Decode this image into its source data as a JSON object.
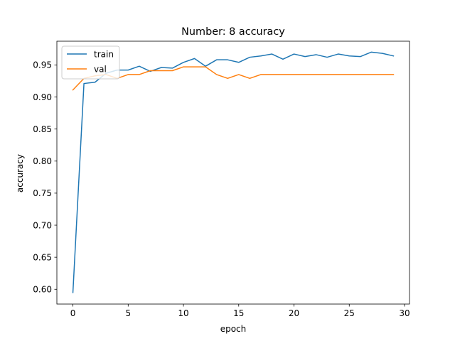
{
  "chart_data": {
    "type": "line",
    "title": "Number: 8 accuracy",
    "xlabel": "epoch",
    "ylabel": "accuracy",
    "xlim": [
      -1.45,
      30.45
    ],
    "ylim": [
      0.577,
      0.987
    ],
    "xticks": [
      0,
      5,
      10,
      15,
      20,
      25,
      30
    ],
    "yticks": [
      0.6,
      0.65,
      0.7,
      0.75,
      0.8,
      0.85,
      0.9,
      0.95
    ],
    "ytick_labels": [
      "0.60",
      "0.65",
      "0.70",
      "0.75",
      "0.80",
      "0.85",
      "0.90",
      "0.95"
    ],
    "grid": false,
    "legend_position": "top-left",
    "x": [
      0,
      1,
      2,
      3,
      4,
      5,
      6,
      7,
      8,
      9,
      10,
      11,
      12,
      13,
      14,
      15,
      16,
      17,
      18,
      19,
      20,
      21,
      22,
      23,
      24,
      25,
      26,
      27,
      28,
      29
    ],
    "series": [
      {
        "name": "train",
        "color": "#1f77b4",
        "values": [
          0.595,
          0.921,
          0.923,
          0.937,
          0.942,
          0.942,
          0.948,
          0.94,
          0.946,
          0.945,
          0.954,
          0.96,
          0.948,
          0.958,
          0.958,
          0.954,
          0.962,
          0.964,
          0.967,
          0.959,
          0.967,
          0.963,
          0.966,
          0.962,
          0.967,
          0.964,
          0.963,
          0.97,
          0.968,
          0.964
        ]
      },
      {
        "name": "val",
        "color": "#ff7f0e",
        "values": [
          0.911,
          0.929,
          0.933,
          0.935,
          0.929,
          0.935,
          0.935,
          0.941,
          0.941,
          0.941,
          0.947,
          0.947,
          0.947,
          0.935,
          0.929,
          0.935,
          0.929,
          0.935,
          0.935,
          0.935,
          0.935,
          0.935,
          0.935,
          0.935,
          0.935,
          0.935,
          0.935,
          0.935,
          0.935,
          0.935
        ]
      }
    ]
  }
}
